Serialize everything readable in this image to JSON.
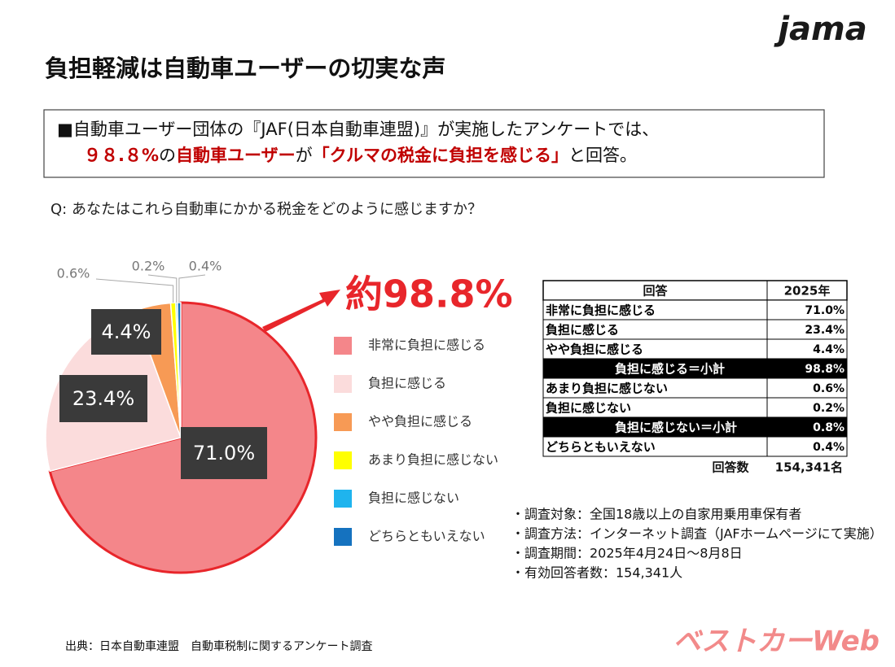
{
  "logo": "jama",
  "title": "負担軽減は自動車ユーザーの切実な声",
  "summary": {
    "line1": "■自動車ユーザー団体の『JAF(日本自動車連盟)』が実施したアンケートでは、",
    "line2": [
      {
        "text": "９８.８%",
        "color": "#c00000",
        "bold": true
      },
      {
        "text": "の",
        "color": "#111111",
        "bold": false
      },
      {
        "text": "自動車ユーザー",
        "color": "#c00000",
        "bold": true
      },
      {
        "text": "が",
        "color": "#111111",
        "bold": false
      },
      {
        "text": "「クルマの税金に負担を感じる」",
        "color": "#c00000",
        "bold": true
      },
      {
        "text": "と回答。",
        "color": "#111111",
        "bold": false
      }
    ]
  },
  "question": "Q: あなたはこれら自動車にかかる税金をどのように感じますか？",
  "chart_data": {
    "type": "pie",
    "categories": [
      "非常に負担に感じる",
      "負担に感じる",
      "やや負担に感じる",
      "あまり負担に感じない",
      "負担に感じない",
      "どちらともいえない"
    ],
    "values": [
      71.0,
      23.4,
      4.4,
      0.6,
      0.2,
      0.4
    ],
    "value_labels": [
      "71.0%",
      "23.4%",
      "4.4%",
      "0.6%",
      "0.2%",
      "0.4%"
    ],
    "colors": [
      "#f4868a",
      "#fbdcdc",
      "#f79a55",
      "#ffff00",
      "#1fb4ee",
      "#1572bf"
    ],
    "annotation": "約98.8%"
  },
  "table": {
    "header": [
      "回答",
      "2025年"
    ],
    "rows": [
      [
        "非常に負担に感じる",
        "71.0%"
      ],
      [
        "負担に感じる",
        "23.4%"
      ],
      [
        "やや負担に感じる",
        "4.4%"
      ],
      [
        "負担に感じる＝小計",
        "98.8%"
      ],
      [
        "あまり負担に感じない",
        "0.6%"
      ],
      [
        "負担に感じない",
        "0.2%"
      ],
      [
        "負担に感じない＝小計",
        "0.8%"
      ],
      [
        "どちらともいえない",
        "0.4%"
      ]
    ],
    "highlight_rows": [
      3,
      6
    ],
    "footer": [
      "回答数",
      "154,341名"
    ]
  },
  "notes": [
    "・調査対象：全国18歳以上の自家用乗用車保有者",
    "・調査方法：インターネット調査（JAFホームページにて実施）",
    "・調査期間：2025年4月24日～8月8日",
    "・有効回答者数：154,341人"
  ],
  "source": "出典：日本自動車連盟　自動車税制に関するアンケート調査",
  "watermark": "ベストカーWeb"
}
